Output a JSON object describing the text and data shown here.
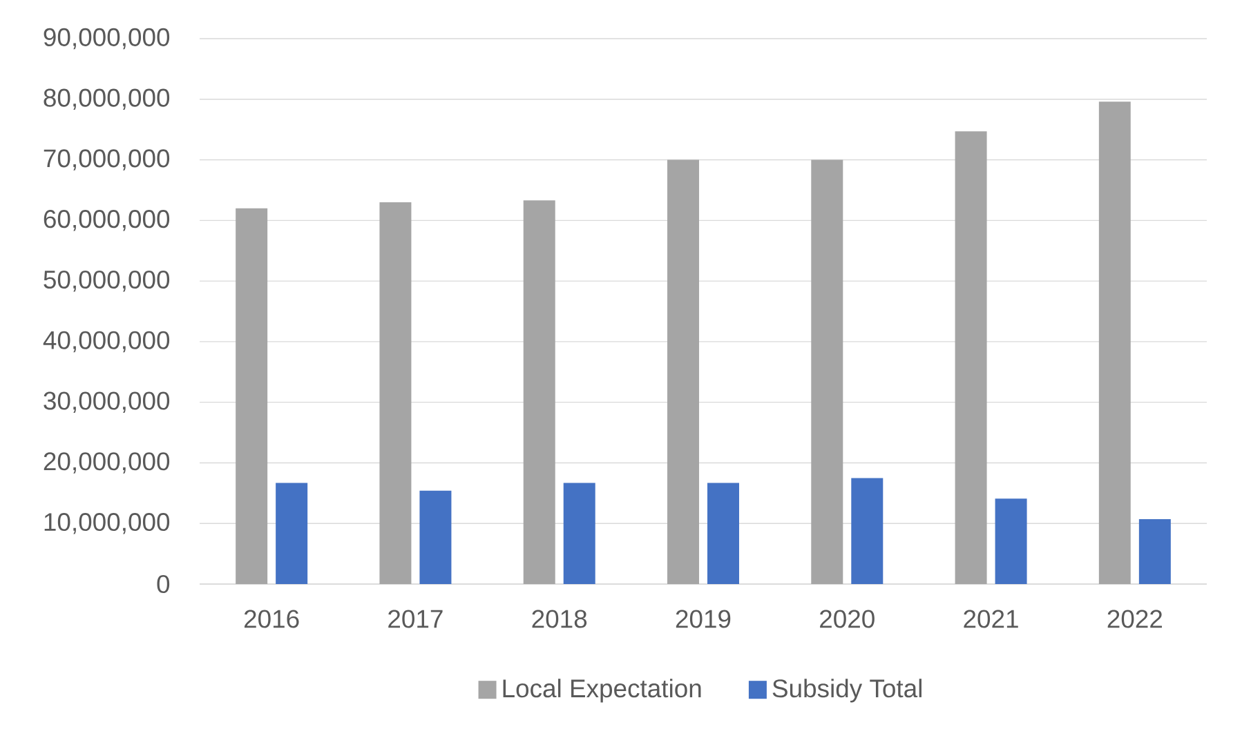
{
  "chart_data": {
    "type": "bar",
    "categories": [
      "2016",
      "2017",
      "2018",
      "2019",
      "2020",
      "2021",
      "2022"
    ],
    "series": [
      {
        "name": "Local Expectation",
        "color": "#a5a5a5",
        "values": [
          62000000,
          63000000,
          63300000,
          70000000,
          70000000,
          74700000,
          79600000
        ]
      },
      {
        "name": "Subsidy Total",
        "color": "#4472c4",
        "values": [
          16700000,
          15400000,
          16700000,
          16700000,
          17500000,
          14100000,
          10700000
        ]
      }
    ],
    "ylim": [
      0,
      90000000
    ],
    "yticks": [
      {
        "value": 0,
        "label": "0"
      },
      {
        "value": 10000000,
        "label": "10,000,000"
      },
      {
        "value": 20000000,
        "label": "20,000,000"
      },
      {
        "value": 30000000,
        "label": "30,000,000"
      },
      {
        "value": 40000000,
        "label": "40,000,000"
      },
      {
        "value": 50000000,
        "label": "50,000,000"
      },
      {
        "value": 60000000,
        "label": "60,000,000"
      },
      {
        "value": 70000000,
        "label": "70,000,000"
      },
      {
        "value": 80000000,
        "label": "80,000,000"
      },
      {
        "value": 90000000,
        "label": "90,000,000"
      }
    ],
    "grid": "y",
    "legend": "bottom"
  }
}
